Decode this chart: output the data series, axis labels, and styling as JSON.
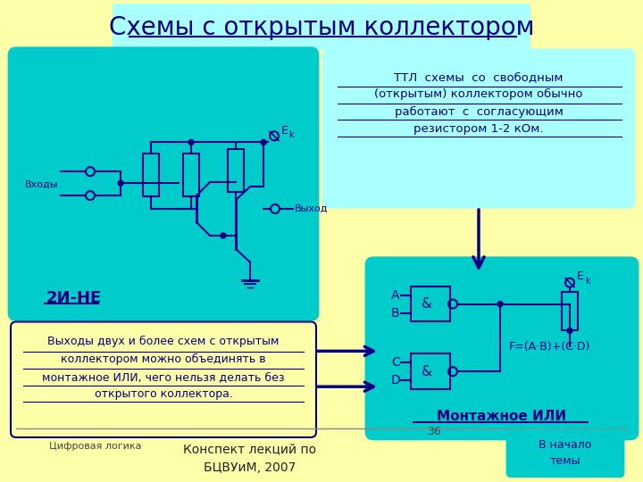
{
  "bg_color": "#ffffaa",
  "title": "Схемы с открытым коллектором",
  "title_color": "#000080",
  "title_fontsize": 20,
  "title_bg": "#aaffff",
  "left_box_color": "#00cccc",
  "left_box_label": "2И-НЕ",
  "left_box_label_color": "#000080",
  "right_top_box_color": "#aaffff",
  "right_top_text": "ТТЛ  схемы  со  свободным\n(открытым) коллектором обычно\nработают  с  согласующим\nрезистором 1-2 кОм.",
  "right_top_text_color": "#000080",
  "right_bot_box_color": "#00cccc",
  "right_bot_label": "Монтажное ИЛИ",
  "right_bot_label_color": "#000080",
  "bottom_left_border_color": "#000080",
  "bottom_left_text": "Выходы двух и более схем с открытым\nколлектором можно объединять в\nмонтажное ИЛИ, чего нельзя делать без\nоткрытого коллектора.",
  "bottom_left_text_color": "#000080",
  "footer_left": "Цифровая логика",
  "footer_center": "Конспект лекций по\nБЦВУиМ, 2007",
  "footer_right_box_color": "#00cccc",
  "footer_right_text": "В начало\nтемы",
  "footer_right_text_color": "#000080",
  "page_number": "36",
  "circuit_color": "#000080",
  "label_color": "#000080"
}
